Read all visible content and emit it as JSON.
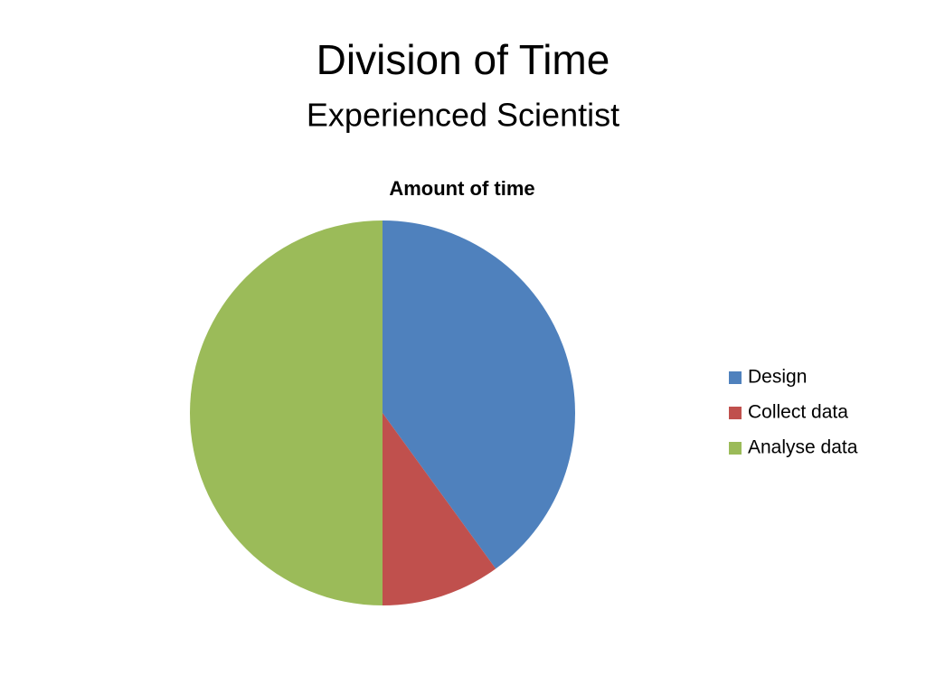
{
  "slide": {
    "title": "Division of Time",
    "subtitle": "Experienced Scientist"
  },
  "chart_data": {
    "type": "pie",
    "title": "Amount of time",
    "categories": [
      "Design",
      "Collect data",
      "Analyse data"
    ],
    "values": [
      40,
      10,
      50
    ],
    "colors": [
      "#4f81bd",
      "#c0504d",
      "#9bbb59"
    ],
    "legend": "right"
  }
}
